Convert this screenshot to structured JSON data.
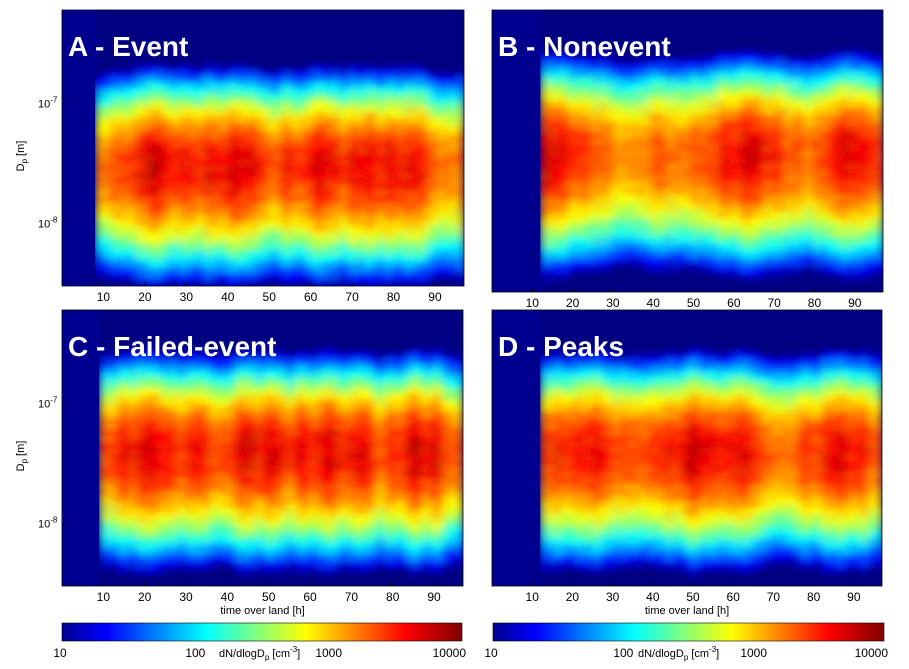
{
  "chart_data": {
    "type": "heatmap",
    "y_axis_label": "D",
    "y_axis_label_sub": "p",
    "y_axis_label_unit": "[m]",
    "y_scale": "log",
    "y_ticks": [
      {
        "base": "10",
        "exp": "-7",
        "value": 1e-07
      },
      {
        "base": "10",
        "exp": "-8",
        "value": 1e-08
      }
    ],
    "ylim": [
      3e-09,
      6e-07
    ],
    "x_label": "time over land [h]",
    "x_ticks": [
      "10",
      "20",
      "30",
      "40",
      "50",
      "60",
      "70",
      "80",
      "90"
    ],
    "xlim": [
      0,
      97
    ],
    "colorbar": {
      "scale": "log",
      "min": 10,
      "max": 10000,
      "ticks": [
        "10",
        "100",
        "1000",
        "10000"
      ],
      "label_main": "dN/dlogD",
      "label_sub": "p",
      "label_unit": "[cm",
      "label_exp": "-3",
      "label_close": "]",
      "colormap": "jet"
    },
    "panels": [
      {
        "id": "A",
        "title": "A - Event",
        "start_hour": 8,
        "mode_peak_hours": [
          22,
          40,
          62,
          80
        ],
        "mode_diameter_m": 3e-08
      },
      {
        "id": "B",
        "title": "B - Nonevent",
        "start_hour": 12,
        "mode_peak_hours": [
          14,
          64,
          92
        ],
        "mode_diameter_m": 4e-08
      },
      {
        "id": "C",
        "title": "C - Failed-event",
        "start_hour": 9,
        "mode_peak_hours": [
          22,
          45,
          65,
          87
        ],
        "mode_diameter_m": 4e-08
      },
      {
        "id": "D",
        "title": "D - Peaks",
        "start_hour": 12,
        "mode_peak_hours": [
          22,
          50,
          60,
          88
        ],
        "mode_diameter_m": 4e-08
      }
    ]
  }
}
